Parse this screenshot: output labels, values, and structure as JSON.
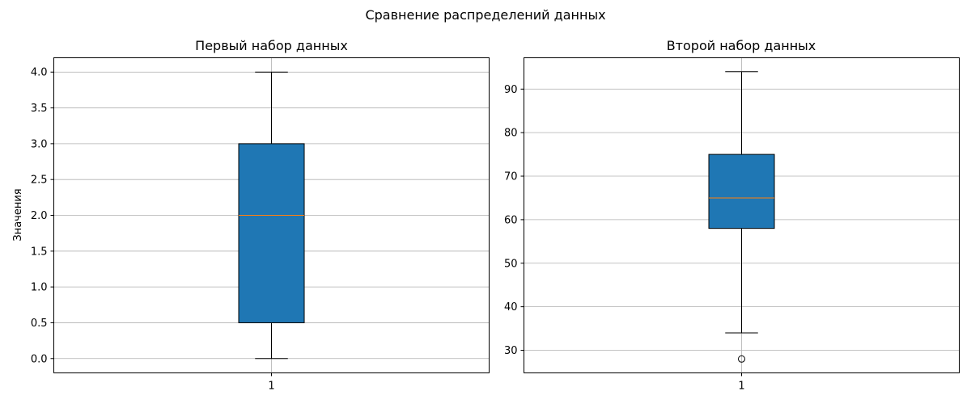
{
  "figure": {
    "suptitle": "Сравнение распределений данных"
  },
  "chart_data": [
    {
      "type": "box",
      "title": "Первый набор данных",
      "xlabel": "",
      "ylabel": "Значения",
      "categories": [
        "1"
      ],
      "ylim": [
        -0.2,
        4.2
      ],
      "yticks": [
        0.0,
        0.5,
        1.0,
        1.5,
        2.0,
        2.5,
        3.0,
        3.5,
        4.0
      ],
      "ytick_labels": [
        "0.0",
        "0.5",
        "1.0",
        "1.5",
        "2.0",
        "2.5",
        "3.0",
        "3.5",
        "4.0"
      ],
      "grid": true,
      "boxes": [
        {
          "whisker_low": 0.0,
          "q1": 0.5,
          "median": 2.0,
          "q3": 3.0,
          "whisker_high": 4.0,
          "outliers": []
        }
      ],
      "colors": {
        "box_fill": "#1f77b4",
        "median": "#ff7f0e",
        "grid": "#b0b0b0"
      }
    },
    {
      "type": "box",
      "title": "Второй набор данных",
      "xlabel": "",
      "ylabel": "",
      "categories": [
        "1"
      ],
      "ylim": [
        24.8,
        97.2
      ],
      "yticks": [
        30,
        40,
        50,
        60,
        70,
        80,
        90
      ],
      "ytick_labels": [
        "30",
        "40",
        "50",
        "60",
        "70",
        "80",
        "90"
      ],
      "grid": true,
      "boxes": [
        {
          "whisker_low": 34,
          "q1": 58,
          "median": 65,
          "q3": 75,
          "whisker_high": 94,
          "outliers": [
            28
          ]
        }
      ],
      "colors": {
        "box_fill": "#1f77b4",
        "median": "#ff7f0e",
        "grid": "#b0b0b0"
      }
    }
  ]
}
